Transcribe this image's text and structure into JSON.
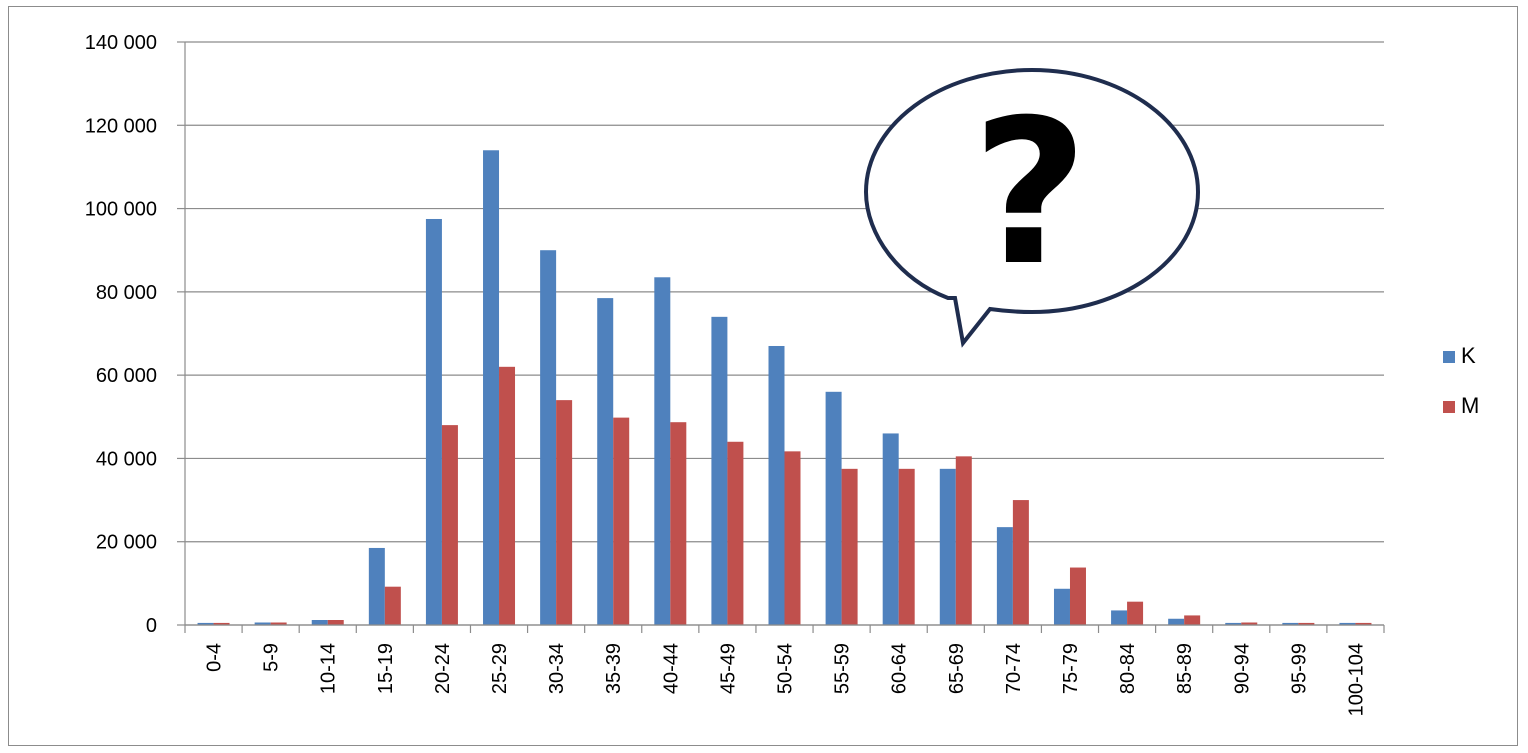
{
  "chart_data": {
    "type": "bar",
    "categories": [
      "0-4",
      "5-9",
      "10-14",
      "15-19",
      "20-24",
      "25-29",
      "30-34",
      "35-39",
      "40-44",
      "45-49",
      "50-54",
      "55-59",
      "60-64",
      "65-69",
      "70-74",
      "75-79",
      "80-84",
      "85-89",
      "90-94",
      "95-99",
      "100-104"
    ],
    "series": [
      {
        "name": "K",
        "color": "#4f81bd",
        "values": [
          500,
          600,
          1200,
          18500,
          97500,
          114000,
          90000,
          78500,
          83500,
          74000,
          67000,
          56000,
          46000,
          37500,
          23500,
          8700,
          3500,
          1500,
          500,
          500,
          500
        ]
      },
      {
        "name": "M",
        "color": "#c0504d",
        "values": [
          500,
          600,
          1200,
          9200,
          48000,
          62000,
          54000,
          49800,
          48700,
          44000,
          41700,
          37500,
          37500,
          40500,
          30000,
          13800,
          5600,
          2300,
          600,
          500,
          500
        ]
      }
    ],
    "ylim": [
      0,
      140000
    ],
    "yticks": [
      0,
      20000,
      40000,
      60000,
      80000,
      100000,
      120000,
      140000
    ],
    "ytick_labels": [
      "0",
      "20 000",
      "40 000",
      "60 000",
      "80 000",
      "100 000",
      "120 000",
      "140 000"
    ],
    "grid": true,
    "legend_position": "right",
    "title": "",
    "xlabel": "",
    "ylabel": ""
  },
  "annotation": {
    "text": "?",
    "shape": "speech-bubble",
    "fill": "#ffffff",
    "stroke": "#1f2d4e"
  }
}
